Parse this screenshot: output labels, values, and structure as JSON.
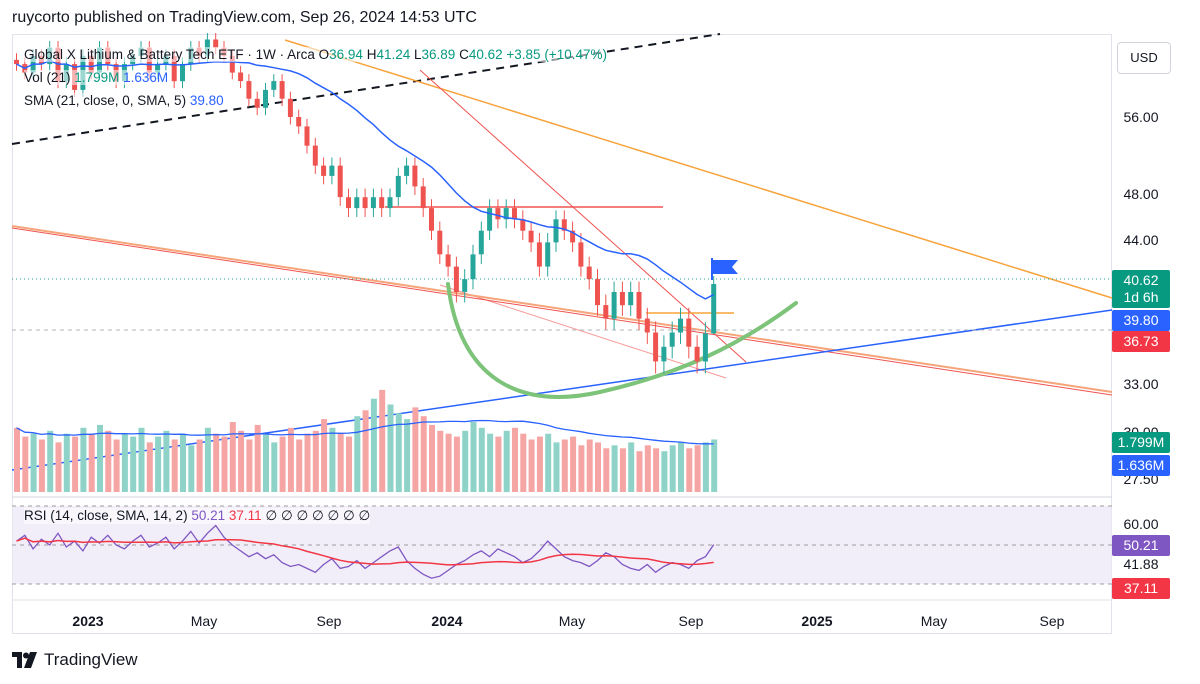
{
  "header": {
    "publisher": "ruycorto published on TradingView.com, Sep 26, 2024 14:53 UTC"
  },
  "legend": {
    "title": "Global X Lithium & Battery Tech ETF · 1W · Arca",
    "o_label": "O",
    "o": "36.94",
    "h_label": "H",
    "h": "41.24",
    "l_label": "L",
    "l": "36.89",
    "c_label": "C",
    "c": "40.62",
    "change": "+3.85 (+10.47%)",
    "vol_label": "Vol (21)",
    "vol_value": "1.799M",
    "vol_sma": "1.636M",
    "sma_label": "SMA (21, close, 0, SMA, 5)",
    "sma_value": "39.80",
    "rsi_label": "RSI (14, close, SMA, 14, 2)",
    "rsi_value": "50.21",
    "rsi_sma": "37.11",
    "rsi_na": "∅ ∅ ∅ ∅ ∅ ∅ ∅"
  },
  "toolbar": {
    "currency": "USD"
  },
  "footer": {
    "brand": "TradingView",
    "logo_icon": "tradingview-logo-icon"
  },
  "colors": {
    "up": "#26a69a",
    "down": "#ef5350",
    "sma": "#2962ff",
    "rsi": "#7e57c2",
    "rsi_ma": "#f23645",
    "curve": "#7dc37a"
  },
  "chart_data": [
    {
      "type": "candlestick",
      "title": "Global X Lithium & Battery Tech ETF",
      "timeframe": "1W",
      "x_ticks": [
        "2023",
        "May",
        "Sep",
        "2024",
        "May",
        "Sep",
        "2025",
        "May",
        "Sep"
      ],
      "y_ticks": [
        "56.00",
        "48.00",
        "44.00",
        "33.00",
        "30.00",
        "27.50"
      ],
      "y_scale": "log",
      "price_labels": [
        {
          "text": "40.62",
          "color": "#089981",
          "sub": "1d 6h"
        },
        {
          "text": "39.80",
          "color": "#2962ff"
        },
        {
          "text": "36.73",
          "color": "#f23645"
        }
      ],
      "last_candle": {
        "open": 36.94,
        "high": 41.24,
        "low": 36.89,
        "close": 40.62
      },
      "close_series_approx": [
        62,
        61,
        63,
        62,
        64,
        60,
        62,
        59,
        63,
        61,
        64,
        62,
        60,
        62,
        63,
        64,
        61,
        62,
        63,
        60,
        62,
        64,
        63,
        65,
        64,
        63,
        61,
        60,
        58,
        57,
        59,
        60,
        58,
        56,
        55,
        53,
        51,
        50,
        51,
        48,
        47,
        48,
        47,
        48,
        47,
        48,
        50,
        51,
        49,
        47,
        45,
        43,
        42,
        40,
        41,
        43,
        45,
        47,
        46,
        47,
        46,
        45,
        44,
        42,
        44,
        46,
        45,
        44,
        42,
        41,
        39,
        38,
        40,
        39,
        40,
        38,
        37,
        35,
        36,
        37,
        38,
        36,
        35,
        36.94,
        40.62
      ],
      "sma21": 39.8
    },
    {
      "type": "bar",
      "title": "Vol (21)",
      "values_millions_approx": [
        2.2,
        1.9,
        2.0,
        1.8,
        2.1,
        1.7,
        2.0,
        1.9,
        2.2,
        2.0,
        2.3,
        2.1,
        1.8,
        2.0,
        1.9,
        2.2,
        1.7,
        1.9,
        2.1,
        1.8,
        2.0,
        1.6,
        1.8,
        2.2,
        2.0,
        1.9,
        2.4,
        2.1,
        1.8,
        2.3,
        2.0,
        1.7,
        1.9,
        2.2,
        1.8,
        2.0,
        2.1,
        2.5,
        2.2,
        2.0,
        1.9,
        2.6,
        2.8,
        3.2,
        3.5,
        3.0,
        2.7,
        2.5,
        2.9,
        2.6,
        2.3,
        2.1,
        2.0,
        1.9,
        2.1,
        2.4,
        2.2,
        2.0,
        1.9,
        2.1,
        2.2,
        2.0,
        1.8,
        1.9,
        2.0,
        1.7,
        1.8,
        1.9,
        1.6,
        1.8,
        1.7,
        1.5,
        1.6,
        1.5,
        1.7,
        1.4,
        1.6,
        1.5,
        1.4,
        1.6,
        1.7,
        1.5,
        1.6,
        1.7,
        1.8
      ],
      "last": "1.799M",
      "sma": "1.636M"
    },
    {
      "type": "line",
      "title": "RSI (14, close, SMA, 14, 2)",
      "y_ticks": [
        "60.00",
        "41.88"
      ],
      "values_approx": [
        52,
        55,
        48,
        53,
        50,
        56,
        49,
        52,
        47,
        54,
        51,
        55,
        50,
        48,
        52,
        55,
        49,
        51,
        54,
        48,
        52,
        57,
        51,
        56,
        60,
        54,
        50,
        47,
        44,
        46,
        43,
        45,
        41,
        39,
        40,
        38,
        36,
        40,
        43,
        38,
        39,
        42,
        38,
        41,
        44,
        47,
        49,
        42,
        38,
        35,
        33,
        34,
        37,
        40,
        42,
        45,
        47,
        44,
        48,
        46,
        44,
        41,
        43,
        47,
        52,
        48,
        44,
        42,
        41,
        39,
        42,
        46,
        44,
        40,
        38,
        37,
        40,
        36,
        39,
        41,
        40,
        38,
        42,
        44,
        50.21
      ],
      "rsi_last": "50.21",
      "ma_last": "37.11"
    }
  ]
}
